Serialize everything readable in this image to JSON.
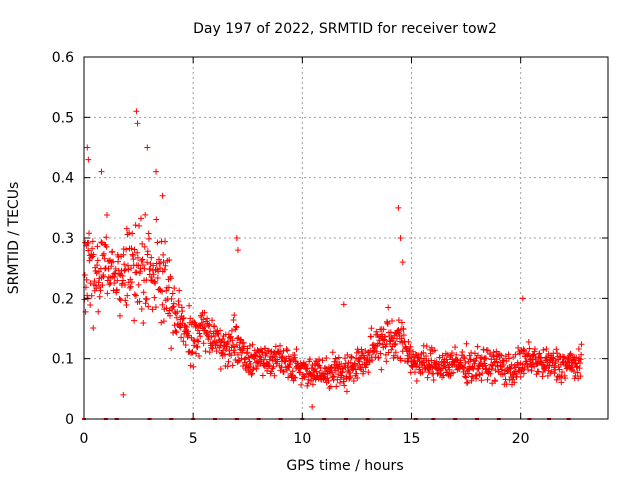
{
  "chart_data": {
    "type": "scatter",
    "title": "Day 197 of 2022, SRMTID for receiver tow2",
    "xlabel": "GPS time / hours",
    "ylabel": "SRMTID / TECUs",
    "xlim": [
      0,
      24
    ],
    "ylim": [
      0,
      0.6
    ],
    "xticks": [
      0,
      5,
      10,
      15,
      20
    ],
    "yticks": [
      0,
      0.1,
      0.2,
      0.3,
      0.4,
      0.5,
      0.6
    ],
    "xtick_labels": [
      "0",
      "5",
      "10",
      "15",
      "20"
    ],
    "ytick_labels": [
      "0",
      "0.1",
      "0.2",
      "0.3",
      "0.4",
      "0.5",
      "0.6"
    ],
    "grid": true,
    "marker": "+",
    "color": "#ff0000",
    "series": [
      {
        "name": "SRMTID",
        "envelope_hours": [
          0,
          0.5,
          1,
          1.5,
          2,
          2.5,
          3,
          3.5,
          4,
          4.5,
          5,
          5.5,
          6,
          6.5,
          7,
          7.5,
          8,
          8.5,
          9,
          9.5,
          10,
          10.5,
          11,
          11.5,
          12,
          12.5,
          13,
          13.5,
          14,
          14.5,
          15,
          15.5,
          16,
          16.5,
          17,
          17.5,
          18,
          18.5,
          19,
          19.5,
          20,
          20.5,
          21,
          21.5,
          22,
          22.5,
          22.8
        ],
        "envelope_center": [
          0.25,
          0.24,
          0.27,
          0.22,
          0.25,
          0.26,
          0.25,
          0.24,
          0.19,
          0.15,
          0.13,
          0.15,
          0.13,
          0.12,
          0.13,
          0.1,
          0.1,
          0.1,
          0.1,
          0.09,
          0.08,
          0.08,
          0.08,
          0.08,
          0.08,
          0.09,
          0.1,
          0.13,
          0.14,
          0.13,
          0.1,
          0.09,
          0.09,
          0.09,
          0.09,
          0.09,
          0.09,
          0.09,
          0.09,
          0.08,
          0.09,
          0.1,
          0.09,
          0.09,
          0.09,
          0.09,
          0.09
        ],
        "envelope_spread": [
          0.12,
          0.1,
          0.09,
          0.08,
          0.12,
          0.14,
          0.12,
          0.11,
          0.09,
          0.07,
          0.06,
          0.06,
          0.05,
          0.05,
          0.06,
          0.04,
          0.04,
          0.04,
          0.04,
          0.04,
          0.04,
          0.03,
          0.03,
          0.04,
          0.04,
          0.04,
          0.04,
          0.06,
          0.07,
          0.06,
          0.04,
          0.04,
          0.04,
          0.04,
          0.04,
          0.04,
          0.04,
          0.04,
          0.04,
          0.04,
          0.04,
          0.04,
          0.04,
          0.04,
          0.04,
          0.04,
          0.04
        ],
        "spikes": [
          {
            "x": 0.15,
            "y": 0.45
          },
          {
            "x": 0.2,
            "y": 0.43
          },
          {
            "x": 0.8,
            "y": 0.41
          },
          {
            "x": 2.4,
            "y": 0.51
          },
          {
            "x": 2.45,
            "y": 0.49
          },
          {
            "x": 2.9,
            "y": 0.45
          },
          {
            "x": 3.3,
            "y": 0.41
          },
          {
            "x": 3.6,
            "y": 0.37
          },
          {
            "x": 7.0,
            "y": 0.3
          },
          {
            "x": 7.05,
            "y": 0.28
          },
          {
            "x": 14.4,
            "y": 0.35
          },
          {
            "x": 14.5,
            "y": 0.3
          },
          {
            "x": 14.6,
            "y": 0.26
          },
          {
            "x": 20.1,
            "y": 0.2
          },
          {
            "x": 11.9,
            "y": 0.19
          },
          {
            "x": 10.45,
            "y": 0.02
          },
          {
            "x": 1.8,
            "y": 0.04
          }
        ]
      }
    ],
    "baseline_markers_hours": [
      0,
      1,
      1.5,
      3,
      4,
      5,
      6,
      7,
      8,
      9,
      10,
      11,
      12,
      13,
      14,
      15.2,
      16,
      17,
      18,
      19,
      20.4,
      21.3,
      22.2
    ]
  }
}
